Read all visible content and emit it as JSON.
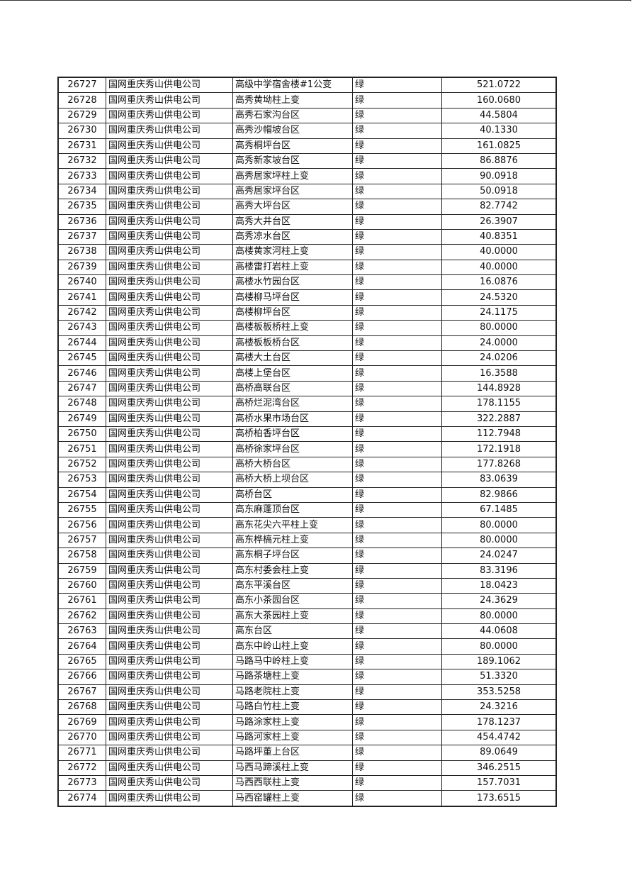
{
  "table": {
    "rows": [
      {
        "id": "26727",
        "company": "国网重庆秀山供电公司",
        "name": "高级中学宿舍楼#1公变",
        "grade": "绿",
        "value": "521.0722"
      },
      {
        "id": "26728",
        "company": "国网重庆秀山供电公司",
        "name": "高秀黄坳柱上变",
        "grade": "绿",
        "value": "160.0680"
      },
      {
        "id": "26729",
        "company": "国网重庆秀山供电公司",
        "name": "高秀石家沟台区",
        "grade": "绿",
        "value": "44.5804"
      },
      {
        "id": "26730",
        "company": "国网重庆秀山供电公司",
        "name": "高秀沙帽坡台区",
        "grade": "绿",
        "value": "40.1330"
      },
      {
        "id": "26731",
        "company": "国网重庆秀山供电公司",
        "name": "高秀桐坪台区",
        "grade": "绿",
        "value": "161.0825"
      },
      {
        "id": "26732",
        "company": "国网重庆秀山供电公司",
        "name": "高秀新家坡台区",
        "grade": "绿",
        "value": "86.8876"
      },
      {
        "id": "26733",
        "company": "国网重庆秀山供电公司",
        "name": "高秀居家坪柱上变",
        "grade": "绿",
        "value": "90.0918"
      },
      {
        "id": "26734",
        "company": "国网重庆秀山供电公司",
        "name": "高秀居家坪台区",
        "grade": "绿",
        "value": "50.0918"
      },
      {
        "id": "26735",
        "company": "国网重庆秀山供电公司",
        "name": "高秀大坪台区",
        "grade": "绿",
        "value": "82.7742"
      },
      {
        "id": "26736",
        "company": "国网重庆秀山供电公司",
        "name": "高秀大井台区",
        "grade": "绿",
        "value": "26.3907"
      },
      {
        "id": "26737",
        "company": "国网重庆秀山供电公司",
        "name": "高秀凉水台区",
        "grade": "绿",
        "value": "40.8351"
      },
      {
        "id": "26738",
        "company": "国网重庆秀山供电公司",
        "name": "高楼黄家河柱上变",
        "grade": "绿",
        "value": "40.0000"
      },
      {
        "id": "26739",
        "company": "国网重庆秀山供电公司",
        "name": "高楼雷打岩柱上变",
        "grade": "绿",
        "value": "40.0000"
      },
      {
        "id": "26740",
        "company": "国网重庆秀山供电公司",
        "name": "高楼水竹园台区",
        "grade": "绿",
        "value": "16.0876"
      },
      {
        "id": "26741",
        "company": "国网重庆秀山供电公司",
        "name": "高楼柳马坪台区",
        "grade": "绿",
        "value": "24.5320"
      },
      {
        "id": "26742",
        "company": "国网重庆秀山供电公司",
        "name": "高楼柳坪台区",
        "grade": "绿",
        "value": "24.1175"
      },
      {
        "id": "26743",
        "company": "国网重庆秀山供电公司",
        "name": "高楼板板桥柱上变",
        "grade": "绿",
        "value": "80.0000"
      },
      {
        "id": "26744",
        "company": "国网重庆秀山供电公司",
        "name": "高楼板板桥台区",
        "grade": "绿",
        "value": "24.0000"
      },
      {
        "id": "26745",
        "company": "国网重庆秀山供电公司",
        "name": "高楼大土台区",
        "grade": "绿",
        "value": "24.0206"
      },
      {
        "id": "26746",
        "company": "国网重庆秀山供电公司",
        "name": "高楼上堡台区",
        "grade": "绿",
        "value": "16.3588"
      },
      {
        "id": "26747",
        "company": "国网重庆秀山供电公司",
        "name": "高桥高联台区",
        "grade": "绿",
        "value": "144.8928"
      },
      {
        "id": "26748",
        "company": "国网重庆秀山供电公司",
        "name": "高桥烂泥湾台区",
        "grade": "绿",
        "value": "178.1155"
      },
      {
        "id": "26749",
        "company": "国网重庆秀山供电公司",
        "name": "高桥水果市场台区",
        "grade": "绿",
        "value": "322.2887"
      },
      {
        "id": "26750",
        "company": "国网重庆秀山供电公司",
        "name": "高桥柏香坪台区",
        "grade": "绿",
        "value": "112.7948"
      },
      {
        "id": "26751",
        "company": "国网重庆秀山供电公司",
        "name": "高桥徐家坪台区",
        "grade": "绿",
        "value": "172.1918"
      },
      {
        "id": "26752",
        "company": "国网重庆秀山供电公司",
        "name": "高桥大桥台区",
        "grade": "绿",
        "value": "177.8268"
      },
      {
        "id": "26753",
        "company": "国网重庆秀山供电公司",
        "name": "高桥大桥上坝台区",
        "grade": "绿",
        "value": "83.0639"
      },
      {
        "id": "26754",
        "company": "国网重庆秀山供电公司",
        "name": "高桥台区",
        "grade": "绿",
        "value": "82.9866"
      },
      {
        "id": "26755",
        "company": "国网重庆秀山供电公司",
        "name": "高东麻蓬顶台区",
        "grade": "绿",
        "value": "67.1485"
      },
      {
        "id": "26756",
        "company": "国网重庆秀山供电公司",
        "name": "高东花尖六平柱上变",
        "grade": "绿",
        "value": "80.0000"
      },
      {
        "id": "26757",
        "company": "国网重庆秀山供电公司",
        "name": "高东桦槁元柱上变",
        "grade": "绿",
        "value": "80.0000"
      },
      {
        "id": "26758",
        "company": "国网重庆秀山供电公司",
        "name": "高东桐子坪台区",
        "grade": "绿",
        "value": "24.0247"
      },
      {
        "id": "26759",
        "company": "国网重庆秀山供电公司",
        "name": "高东村委会柱上变",
        "grade": "绿",
        "value": "83.3196"
      },
      {
        "id": "26760",
        "company": "国网重庆秀山供电公司",
        "name": "高东平溪台区",
        "grade": "绿",
        "value": "18.0423"
      },
      {
        "id": "26761",
        "company": "国网重庆秀山供电公司",
        "name": "高东小茶园台区",
        "grade": "绿",
        "value": "24.3629"
      },
      {
        "id": "26762",
        "company": "国网重庆秀山供电公司",
        "name": "高东大茶园柱上变",
        "grade": "绿",
        "value": "80.0000"
      },
      {
        "id": "26763",
        "company": "国网重庆秀山供电公司",
        "name": "高东台区",
        "grade": "绿",
        "value": "44.0608"
      },
      {
        "id": "26764",
        "company": "国网重庆秀山供电公司",
        "name": "高东中岭山柱上变",
        "grade": "绿",
        "value": "80.0000"
      },
      {
        "id": "26765",
        "company": "国网重庆秀山供电公司",
        "name": "马路马中岭柱上变",
        "grade": "绿",
        "value": "189.1062"
      },
      {
        "id": "26766",
        "company": "国网重庆秀山供电公司",
        "name": "马路茶塘柱上变",
        "grade": "绿",
        "value": "51.3320"
      },
      {
        "id": "26767",
        "company": "国网重庆秀山供电公司",
        "name": "马路老院柱上变",
        "grade": "绿",
        "value": "353.5258"
      },
      {
        "id": "26768",
        "company": "国网重庆秀山供电公司",
        "name": "马路白竹柱上变",
        "grade": "绿",
        "value": "24.3216"
      },
      {
        "id": "26769",
        "company": "国网重庆秀山供电公司",
        "name": "马路涂家柱上变",
        "grade": "绿",
        "value": "178.1237"
      },
      {
        "id": "26770",
        "company": "国网重庆秀山供电公司",
        "name": "马路河家柱上变",
        "grade": "绿",
        "value": "454.4742"
      },
      {
        "id": "26771",
        "company": "国网重庆秀山供电公司",
        "name": "马路坪董上台区",
        "grade": "绿",
        "value": "89.0649"
      },
      {
        "id": "26772",
        "company": "国网重庆秀山供电公司",
        "name": "马西马蹄溪柱上变",
        "grade": "绿",
        "value": "346.2515"
      },
      {
        "id": "26773",
        "company": "国网重庆秀山供电公司",
        "name": "马西西联柱上变",
        "grade": "绿",
        "value": "157.7031"
      },
      {
        "id": "26774",
        "company": "国网重庆秀山供电公司",
        "name": "马西窑罐柱上变",
        "grade": "绿",
        "value": "173.6515"
      }
    ]
  }
}
